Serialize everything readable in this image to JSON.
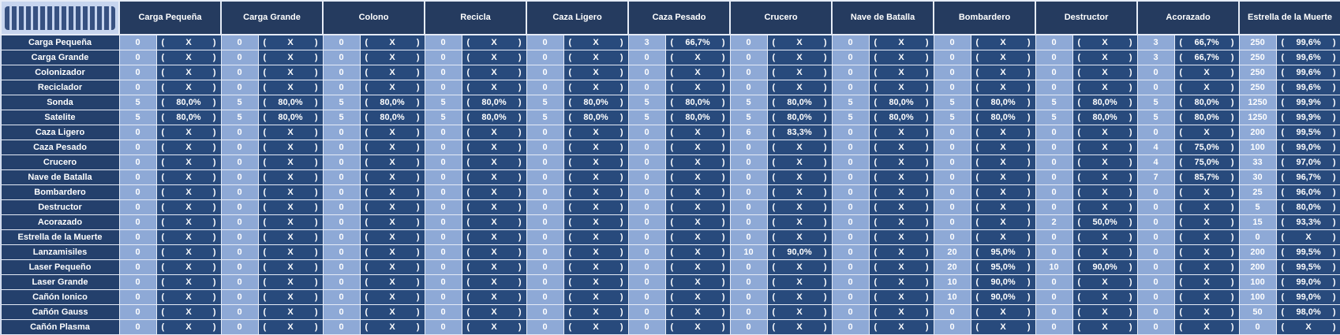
{
  "table": {
    "columns": [
      "Carga Pequeña",
      "Carga Grande",
      "Colono",
      "Recicla",
      "Caza Ligero",
      "Caza Pesado",
      "Crucero",
      "Nave de Batalla",
      "Bombardero",
      "Destructor",
      "Acorazado",
      "Estrella de la Muerte"
    ],
    "rows": [
      {
        "label": "Carga Pequeña",
        "cells": [
          [
            0,
            "( X )"
          ],
          [
            0,
            "( X )"
          ],
          [
            0,
            "( X )"
          ],
          [
            0,
            "( X )"
          ],
          [
            0,
            "( X )"
          ],
          [
            3,
            "( 66,7% )"
          ],
          [
            0,
            "( X )"
          ],
          [
            0,
            "( X )"
          ],
          [
            0,
            "( X )"
          ],
          [
            0,
            "( X )"
          ],
          [
            3,
            "( 66,7% )"
          ],
          [
            250,
            "( 99,6% )"
          ]
        ]
      },
      {
        "label": "Carga Grande",
        "cells": [
          [
            0,
            "( X )"
          ],
          [
            0,
            "( X )"
          ],
          [
            0,
            "( X )"
          ],
          [
            0,
            "( X )"
          ],
          [
            0,
            "( X )"
          ],
          [
            0,
            "( X )"
          ],
          [
            0,
            "( X )"
          ],
          [
            0,
            "( X )"
          ],
          [
            0,
            "( X )"
          ],
          [
            0,
            "( X )"
          ],
          [
            3,
            "( 66,7% )"
          ],
          [
            250,
            "( 99,6% )"
          ]
        ]
      },
      {
        "label": "Colonizador",
        "cells": [
          [
            0,
            "( X )"
          ],
          [
            0,
            "( X )"
          ],
          [
            0,
            "( X )"
          ],
          [
            0,
            "( X )"
          ],
          [
            0,
            "( X )"
          ],
          [
            0,
            "( X )"
          ],
          [
            0,
            "( X )"
          ],
          [
            0,
            "( X )"
          ],
          [
            0,
            "( X )"
          ],
          [
            0,
            "( X )"
          ],
          [
            0,
            "( X )"
          ],
          [
            250,
            "( 99,6% )"
          ]
        ]
      },
      {
        "label": "Reciclador",
        "cells": [
          [
            0,
            "( X )"
          ],
          [
            0,
            "( X )"
          ],
          [
            0,
            "( X )"
          ],
          [
            0,
            "( X )"
          ],
          [
            0,
            "( X )"
          ],
          [
            0,
            "( X )"
          ],
          [
            0,
            "( X )"
          ],
          [
            0,
            "( X )"
          ],
          [
            0,
            "( X )"
          ],
          [
            0,
            "( X )"
          ],
          [
            0,
            "( X )"
          ],
          [
            250,
            "( 99,6% )"
          ]
        ]
      },
      {
        "label": "Sonda",
        "cells": [
          [
            5,
            "( 80,0% )"
          ],
          [
            5,
            "( 80,0% )"
          ],
          [
            5,
            "( 80,0% )"
          ],
          [
            5,
            "( 80,0% )"
          ],
          [
            5,
            "( 80,0% )"
          ],
          [
            5,
            "( 80,0% )"
          ],
          [
            5,
            "( 80,0% )"
          ],
          [
            5,
            "( 80,0% )"
          ],
          [
            5,
            "( 80,0% )"
          ],
          [
            5,
            "( 80,0% )"
          ],
          [
            5,
            "( 80,0% )"
          ],
          [
            1250,
            "( 99,9% )"
          ]
        ]
      },
      {
        "label": "Satelite",
        "cells": [
          [
            5,
            "( 80,0% )"
          ],
          [
            5,
            "( 80,0% )"
          ],
          [
            5,
            "( 80,0% )"
          ],
          [
            5,
            "( 80,0% )"
          ],
          [
            5,
            "( 80,0% )"
          ],
          [
            5,
            "( 80,0% )"
          ],
          [
            5,
            "( 80,0% )"
          ],
          [
            5,
            "( 80,0% )"
          ],
          [
            5,
            "( 80,0% )"
          ],
          [
            5,
            "( 80,0% )"
          ],
          [
            5,
            "( 80,0% )"
          ],
          [
            1250,
            "( 99,9% )"
          ]
        ]
      },
      {
        "label": "Caza Ligero",
        "cells": [
          [
            0,
            "( X )"
          ],
          [
            0,
            "( X )"
          ],
          [
            0,
            "( X )"
          ],
          [
            0,
            "( X )"
          ],
          [
            0,
            "( X )"
          ],
          [
            0,
            "( X )"
          ],
          [
            6,
            "( 83,3% )"
          ],
          [
            0,
            "( X )"
          ],
          [
            0,
            "( X )"
          ],
          [
            0,
            "( X )"
          ],
          [
            0,
            "( X )"
          ],
          [
            200,
            "( 99,5% )"
          ]
        ]
      },
      {
        "label": "Caza Pesado",
        "cells": [
          [
            0,
            "( X )"
          ],
          [
            0,
            "( X )"
          ],
          [
            0,
            "( X )"
          ],
          [
            0,
            "( X )"
          ],
          [
            0,
            "( X )"
          ],
          [
            0,
            "( X )"
          ],
          [
            0,
            "( X )"
          ],
          [
            0,
            "( X )"
          ],
          [
            0,
            "( X )"
          ],
          [
            0,
            "( X )"
          ],
          [
            4,
            "( 75,0% )"
          ],
          [
            100,
            "( 99,0% )"
          ]
        ]
      },
      {
        "label": "Crucero",
        "cells": [
          [
            0,
            "( X )"
          ],
          [
            0,
            "( X )"
          ],
          [
            0,
            "( X )"
          ],
          [
            0,
            "( X )"
          ],
          [
            0,
            "( X )"
          ],
          [
            0,
            "( X )"
          ],
          [
            0,
            "( X )"
          ],
          [
            0,
            "( X )"
          ],
          [
            0,
            "( X )"
          ],
          [
            0,
            "( X )"
          ],
          [
            4,
            "( 75,0% )"
          ],
          [
            33,
            "( 97,0% )"
          ]
        ]
      },
      {
        "label": "Nave de Batalla",
        "cells": [
          [
            0,
            "( X )"
          ],
          [
            0,
            "( X )"
          ],
          [
            0,
            "( X )"
          ],
          [
            0,
            "( X )"
          ],
          [
            0,
            "( X )"
          ],
          [
            0,
            "( X )"
          ],
          [
            0,
            "( X )"
          ],
          [
            0,
            "( X )"
          ],
          [
            0,
            "( X )"
          ],
          [
            0,
            "( X )"
          ],
          [
            7,
            "( 85,7% )"
          ],
          [
            30,
            "( 96,7% )"
          ]
        ]
      },
      {
        "label": "Bombardero",
        "cells": [
          [
            0,
            "( X )"
          ],
          [
            0,
            "( X )"
          ],
          [
            0,
            "( X )"
          ],
          [
            0,
            "( X )"
          ],
          [
            0,
            "( X )"
          ],
          [
            0,
            "( X )"
          ],
          [
            0,
            "( X )"
          ],
          [
            0,
            "( X )"
          ],
          [
            0,
            "( X )"
          ],
          [
            0,
            "( X )"
          ],
          [
            0,
            "( X )"
          ],
          [
            25,
            "( 96,0% )"
          ]
        ]
      },
      {
        "label": "Destructor",
        "cells": [
          [
            0,
            "( X )"
          ],
          [
            0,
            "( X )"
          ],
          [
            0,
            "( X )"
          ],
          [
            0,
            "( X )"
          ],
          [
            0,
            "( X )"
          ],
          [
            0,
            "( X )"
          ],
          [
            0,
            "( X )"
          ],
          [
            0,
            "( X )"
          ],
          [
            0,
            "( X )"
          ],
          [
            0,
            "( X )"
          ],
          [
            0,
            "( X )"
          ],
          [
            5,
            "( 80,0% )"
          ]
        ]
      },
      {
        "label": "Acorazado",
        "cells": [
          [
            0,
            "( X )"
          ],
          [
            0,
            "( X )"
          ],
          [
            0,
            "( X )"
          ],
          [
            0,
            "( X )"
          ],
          [
            0,
            "( X )"
          ],
          [
            0,
            "( X )"
          ],
          [
            0,
            "( X )"
          ],
          [
            0,
            "( X )"
          ],
          [
            0,
            "( X )"
          ],
          [
            2,
            "( 50,0% )"
          ],
          [
            0,
            "( X )"
          ],
          [
            15,
            "( 93,3% )"
          ]
        ]
      },
      {
        "label": "Estrella de la Muerte",
        "cells": [
          [
            0,
            "( X )"
          ],
          [
            0,
            "( X )"
          ],
          [
            0,
            "( X )"
          ],
          [
            0,
            "( X )"
          ],
          [
            0,
            "( X )"
          ],
          [
            0,
            "( X )"
          ],
          [
            0,
            "( X )"
          ],
          [
            0,
            "( X )"
          ],
          [
            0,
            "( X )"
          ],
          [
            0,
            "( X )"
          ],
          [
            0,
            "( X )"
          ],
          [
            0,
            "( X )"
          ]
        ]
      },
      {
        "label": "Lanzamisiles",
        "cells": [
          [
            0,
            "( X )"
          ],
          [
            0,
            "( X )"
          ],
          [
            0,
            "( X )"
          ],
          [
            0,
            "( X )"
          ],
          [
            0,
            "( X )"
          ],
          [
            0,
            "( X )"
          ],
          [
            10,
            "( 90,0% )"
          ],
          [
            0,
            "( X )"
          ],
          [
            20,
            "( 95,0% )"
          ],
          [
            0,
            "( X )"
          ],
          [
            0,
            "( X )"
          ],
          [
            200,
            "( 99,5% )"
          ]
        ]
      },
      {
        "label": "Laser Pequeño",
        "cells": [
          [
            0,
            "( X )"
          ],
          [
            0,
            "( X )"
          ],
          [
            0,
            "( X )"
          ],
          [
            0,
            "( X )"
          ],
          [
            0,
            "( X )"
          ],
          [
            0,
            "( X )"
          ],
          [
            0,
            "( X )"
          ],
          [
            0,
            "( X )"
          ],
          [
            20,
            "( 95,0% )"
          ],
          [
            10,
            "( 90,0% )"
          ],
          [
            0,
            "( X )"
          ],
          [
            200,
            "( 99,5% )"
          ]
        ]
      },
      {
        "label": "Laser Grande",
        "cells": [
          [
            0,
            "( X )"
          ],
          [
            0,
            "( X )"
          ],
          [
            0,
            "( X )"
          ],
          [
            0,
            "( X )"
          ],
          [
            0,
            "( X )"
          ],
          [
            0,
            "( X )"
          ],
          [
            0,
            "( X )"
          ],
          [
            0,
            "( X )"
          ],
          [
            10,
            "( 90,0% )"
          ],
          [
            0,
            "( X )"
          ],
          [
            0,
            "( X )"
          ],
          [
            100,
            "( 99,0% )"
          ]
        ]
      },
      {
        "label": "Cañón Ionico",
        "cells": [
          [
            0,
            "( X )"
          ],
          [
            0,
            "( X )"
          ],
          [
            0,
            "( X )"
          ],
          [
            0,
            "( X )"
          ],
          [
            0,
            "( X )"
          ],
          [
            0,
            "( X )"
          ],
          [
            0,
            "( X )"
          ],
          [
            0,
            "( X )"
          ],
          [
            10,
            "( 90,0% )"
          ],
          [
            0,
            "( X )"
          ],
          [
            0,
            "( X )"
          ],
          [
            100,
            "( 99,0% )"
          ]
        ]
      },
      {
        "label": "Cañón Gauss",
        "cells": [
          [
            0,
            "( X )"
          ],
          [
            0,
            "( X )"
          ],
          [
            0,
            "( X )"
          ],
          [
            0,
            "( X )"
          ],
          [
            0,
            "( X )"
          ],
          [
            0,
            "( X )"
          ],
          [
            0,
            "( X )"
          ],
          [
            0,
            "( X )"
          ],
          [
            0,
            "( X )"
          ],
          [
            0,
            "( X )"
          ],
          [
            0,
            "( X )"
          ],
          [
            50,
            "( 98,0% )"
          ]
        ]
      },
      {
        "label": "Cañón Plasma",
        "cells": [
          [
            0,
            "( X )"
          ],
          [
            0,
            "( X )"
          ],
          [
            0,
            "( X )"
          ],
          [
            0,
            "( X )"
          ],
          [
            0,
            "( X )"
          ],
          [
            0,
            "( X )"
          ],
          [
            0,
            "( X )"
          ],
          [
            0,
            "( X )"
          ],
          [
            0,
            "( X )"
          ],
          [
            0,
            "( X )"
          ],
          [
            0,
            "( X )"
          ],
          [
            0,
            "( X )"
          ]
        ]
      }
    ]
  }
}
